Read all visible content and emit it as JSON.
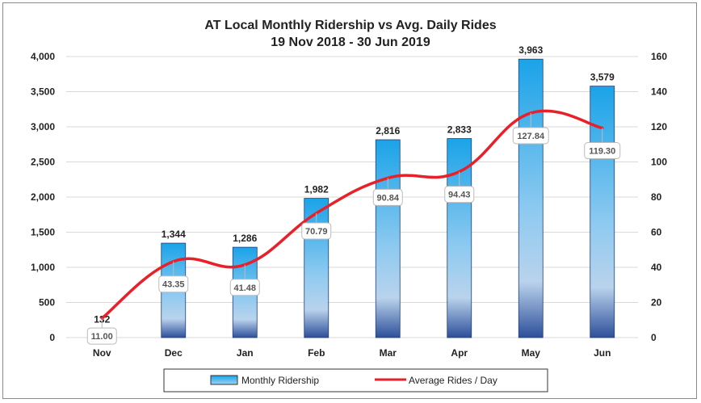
{
  "chart_data": {
    "type": "bar",
    "title": "AT Local Monthly Ridership vs Avg. Daily Rides",
    "subtitle": "19 Nov 2018 - 30 Jun 2019",
    "categories": [
      "Nov",
      "Dec",
      "Jan",
      "Feb",
      "Mar",
      "Apr",
      "May",
      "Jun"
    ],
    "series": [
      {
        "name": "Monthly Ridership",
        "type": "bar",
        "axis": "left",
        "values": [
          132,
          1344,
          1286,
          1982,
          2816,
          2833,
          3963,
          3579
        ],
        "labels": [
          "132",
          "1,344",
          "1,286",
          "1,982",
          "2,816",
          "2,833",
          "3,963",
          "3,579"
        ],
        "color_top": "#1aa3e8",
        "color_mid": "#b3d4ee",
        "color_bottom": "#2e4f9a"
      },
      {
        "name": "Average Rides / Day",
        "type": "line",
        "axis": "right",
        "values": [
          11.0,
          43.35,
          41.48,
          70.79,
          90.84,
          94.43,
          127.84,
          119.3
        ],
        "labels": [
          "11.00",
          "43.35",
          "41.48",
          "70.79",
          "90.84",
          "94.43",
          "127.84",
          "119.30"
        ],
        "color": "#e8202a"
      }
    ],
    "y_left": {
      "min": 0,
      "max": 4000,
      "ticks": [
        "0",
        "500",
        "1,000",
        "1,500",
        "2,000",
        "2,500",
        "3,000",
        "3,500",
        "4,000"
      ]
    },
    "y_right": {
      "min": 0,
      "max": 160,
      "ticks": [
        "0",
        "20",
        "40",
        "60",
        "80",
        "100",
        "120",
        "140",
        "160"
      ]
    },
    "grid": true,
    "legend_position": "bottom"
  }
}
